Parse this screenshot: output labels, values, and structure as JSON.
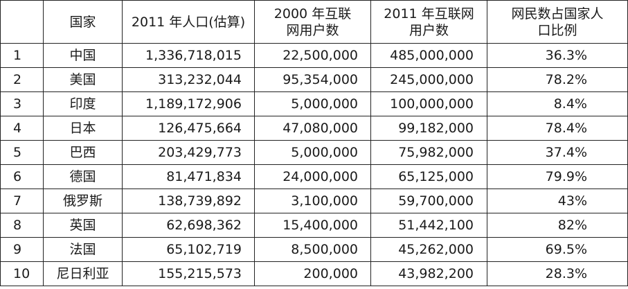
{
  "headers": {
    "rank": "",
    "country": "国家",
    "population_2011": "2011 年人口(估算)",
    "users_2000_line1": "2000 年互联",
    "users_2000_line2": "网用户数",
    "users_2011_line1": "2011 年互联网",
    "users_2011_line2": "用户数",
    "penetration_line1": "网民数占国家人",
    "penetration_line2": "口比例"
  },
  "rows": [
    {
      "rank": "1",
      "country": "中国",
      "population": "1,336,718,015",
      "users_2000": "22,500,000",
      "users_2011": "485,000,000",
      "penetration": "36.3%"
    },
    {
      "rank": "2",
      "country": "美国",
      "population": "313,232,044",
      "users_2000": "95,354,000",
      "users_2011": "245,000,000",
      "penetration": "78.2%"
    },
    {
      "rank": "3",
      "country": "印度",
      "population": "1,189,172,906",
      "users_2000": "5,000,000",
      "users_2011": "100,000,000",
      "penetration": "8.4%"
    },
    {
      "rank": "4",
      "country": "日本",
      "population": "126,475,664",
      "users_2000": "47,080,000",
      "users_2011": "99,182,000",
      "penetration": "78.4%"
    },
    {
      "rank": "5",
      "country": "巴西",
      "population": "203,429,773",
      "users_2000": "5,000,000",
      "users_2011": "75,982,000",
      "penetration": "37.4%"
    },
    {
      "rank": "6",
      "country": "德国",
      "population": "81,471,834",
      "users_2000": "24,000,000",
      "users_2011": "65,125,000",
      "penetration": "79.9%"
    },
    {
      "rank": "7",
      "country": "俄罗斯",
      "population": "138,739,892",
      "users_2000": "3,100,000",
      "users_2011": "59,700,000",
      "penetration": "43%"
    },
    {
      "rank": "8",
      "country": "英国",
      "population": "62,698,362",
      "users_2000": "15,400,000",
      "users_2011": "51,442,100",
      "penetration": "82%"
    },
    {
      "rank": "9",
      "country": "法国",
      "population": "65,102,719",
      "users_2000": "8,500,000",
      "users_2011": "45,262,000",
      "penetration": "69.5%"
    },
    {
      "rank": "10",
      "country": "尼日利亚",
      "population": "155,215,573",
      "users_2000": "200,000",
      "users_2011": "43,982,200",
      "penetration": "28.3%"
    }
  ]
}
